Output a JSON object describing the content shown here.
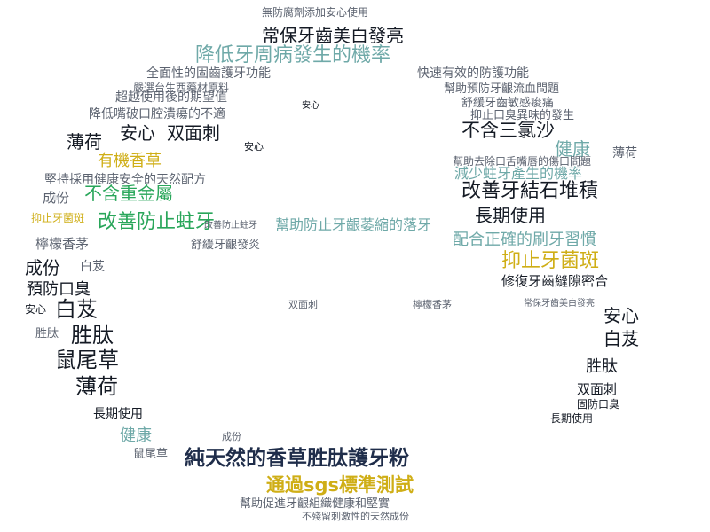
{
  "image": {
    "description_colors": {
      "background": "#ffffff",
      "dark_text": "#141a24",
      "navy_text": "#1f2d4a",
      "gray_text": "#5c6370",
      "light_gray_text": "#8e949c",
      "teal_text": "#6fa9a8",
      "green_text": "#29a65a",
      "gold_text": "#cfae16"
    }
  },
  "words": {
    "top1": "無防腐劑添加安心使用",
    "top2": "常保牙齒美白發亮",
    "top3": "降低牙周病發生的機率",
    "top4": "全面性的固齒護牙功能",
    "top5": "嚴選台生西藥材原料",
    "top6": "超越使用後的期望值",
    "top7": "降低嘴破口腔潰瘍的不適",
    "top8": "快速有效的防護功能",
    "top9": "幫助預防牙齦流血問題",
    "top10": "舒緩牙齒敏感痠痛",
    "top11": "抑止口臭異味的發生",
    "top12": "不含三氯沙",
    "top13": "健康",
    "top14": "薄荷",
    "left1": "薄荷",
    "left2": "安心",
    "left3": "双面刺",
    "left4": "有機香草",
    "left5": "堅持採用健康安全的天然配方",
    "left6": "成份",
    "left7": "不含重金屬",
    "left8": "改善防止蛀牙",
    "left9": "幫助防止牙齦萎縮的落牙",
    "left10": "抑止牙菌斑",
    "left11": "檸檬香茅",
    "left12": "舒緩牙齦發炎",
    "left13": "成份",
    "left14": "白芨",
    "left15": "預防口臭",
    "left16": "安心",
    "left17": "白芨",
    "left18": "胜肽",
    "left19": "胜肽",
    "left20": "鼠尾草",
    "left21": "薄荷",
    "left22": "長期使用",
    "left23": "健康",
    "left24": "鼠尾草",
    "right1": "改善牙結石堆積",
    "right2": "長期使用",
    "right3": "配合正確的刷牙習慣",
    "right4": "抑止牙菌斑",
    "right5": "修復牙齒縫隙密合",
    "right6": "減少蛀牙產生的機率",
    "right7": "安心",
    "right8": "白芨",
    "right9": "胜肽",
    "right10": "双面刺",
    "right11": "固防口臭",
    "right12": "長期使用",
    "right13": "幫助去除口舌嘴唇的傷口問題",
    "center1": "双面刺",
    "center2": "檸檬香茅",
    "bottom1": "純天然的香草胜肽護牙粉",
    "bottom2": "通過sgs標準測試",
    "bottom3": "幫助促進牙齦組織健康和堅實",
    "bottom4": "不殘留刺激性的天然成份",
    "bottom5": "成份",
    "small1": "安心",
    "small2": "改善防止蛀牙",
    "small3": "常保牙齒美白發亮"
  }
}
